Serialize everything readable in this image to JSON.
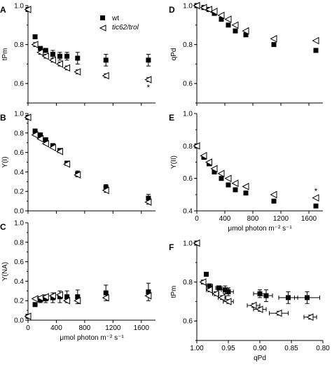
{
  "legend": {
    "entries": [
      {
        "label": "wt",
        "marker": "filled-square"
      },
      {
        "label": "tic62/trol",
        "marker": "open-triangle-left",
        "italic": true
      }
    ]
  },
  "chart_data": [
    {
      "panel": "A",
      "type": "scatter",
      "ylabel": "tPm",
      "xlabel": "",
      "xlim": [
        0,
        1800
      ],
      "ylim": [
        0.5,
        1.0
      ],
      "yticks": [
        "0.6",
        "0.8",
        "1.0"
      ],
      "xticks": [],
      "series": [
        {
          "name": "wt",
          "marker": "filled-square",
          "color": "#000000",
          "x": [
            0,
            100,
            175,
            250,
            350,
            450,
            550,
            700,
            1100,
            1700
          ],
          "y": [
            0.98,
            0.84,
            0.78,
            0.77,
            0.75,
            0.74,
            0.74,
            0.73,
            0.72,
            0.72
          ],
          "err": [
            0,
            0.01,
            0.01,
            0.01,
            0.02,
            0.02,
            0.02,
            0.03,
            0.03,
            0.03
          ]
        },
        {
          "name": "tic62/trol",
          "marker": "open-triangle-left",
          "color": "#000000",
          "x": [
            0,
            100,
            175,
            250,
            350,
            450,
            550,
            700,
            1100,
            1700
          ],
          "y": [
            0.98,
            0.8,
            0.76,
            0.74,
            0.72,
            0.7,
            0.68,
            0.66,
            0.64,
            0.62
          ],
          "err": [
            0,
            0.01,
            0.01,
            0.01,
            0.01,
            0.01,
            0.01,
            0.01,
            0.01,
            0.01
          ]
        }
      ],
      "annotations": [
        {
          "text": "*",
          "x": 1700,
          "y": 0.58
        }
      ]
    },
    {
      "panel": "B",
      "type": "scatter",
      "ylabel": "Y(I)",
      "xlabel": "",
      "xlim": [
        0,
        1800
      ],
      "ylim": [
        0,
        1.0
      ],
      "yticks": [
        "0.0",
        "0.2",
        "0.4",
        "0.6",
        "0.8",
        "1.0"
      ],
      "xticks": [],
      "series": [
        {
          "name": "wt",
          "marker": "filled-square",
          "color": "#000000",
          "x": [
            0,
            100,
            175,
            250,
            350,
            450,
            550,
            700,
            1100,
            1700
          ],
          "y": [
            0.96,
            0.82,
            0.78,
            0.73,
            0.67,
            0.62,
            0.49,
            0.38,
            0.24,
            0.13
          ],
          "err": [
            0,
            0.01,
            0.01,
            0.02,
            0.02,
            0.02,
            0.02,
            0.03,
            0.03,
            0.04
          ]
        },
        {
          "name": "tic62/trol",
          "marker": "open-triangle-left",
          "color": "#000000",
          "x": [
            0,
            100,
            175,
            250,
            350,
            450,
            550,
            700,
            1100,
            1700
          ],
          "y": [
            0.96,
            0.78,
            0.74,
            0.69,
            0.65,
            0.61,
            0.48,
            0.37,
            0.21,
            0.09
          ],
          "err": [
            0,
            0.01,
            0.01,
            0.01,
            0.01,
            0.01,
            0.01,
            0.01,
            0.02,
            0.02
          ]
        }
      ]
    },
    {
      "panel": "C",
      "type": "scatter",
      "ylabel": "Y(NA)",
      "xlabel": "μmol photon m⁻² s⁻¹",
      "xlim": [
        0,
        1800
      ],
      "ylim": [
        0,
        1.0
      ],
      "yticks": [
        "0.0",
        "0.2",
        "0.4",
        "0.6",
        "0.8",
        "1.0"
      ],
      "xticks": [
        "0",
        "400",
        "800",
        "1200",
        "1600"
      ],
      "series": [
        {
          "name": "wt",
          "marker": "filled-square",
          "color": "#000000",
          "x": [
            0,
            100,
            175,
            250,
            350,
            450,
            550,
            700,
            1100,
            1700
          ],
          "y": [
            0.04,
            0.16,
            0.21,
            0.22,
            0.23,
            0.24,
            0.24,
            0.24,
            0.28,
            0.29
          ],
          "err": [
            0,
            0.02,
            0.03,
            0.04,
            0.05,
            0.06,
            0.06,
            0.07,
            0.08,
            0.09
          ]
        },
        {
          "name": "tic62/trol",
          "marker": "open-triangle-left",
          "color": "#000000",
          "x": [
            0,
            100,
            175,
            250,
            350,
            450,
            550,
            700,
            1100,
            1700
          ],
          "y": [
            0.04,
            0.22,
            0.23,
            0.24,
            0.25,
            0.26,
            0.2,
            0.2,
            0.23,
            0.25
          ],
          "err": [
            0,
            0.01,
            0.01,
            0.01,
            0.01,
            0.01,
            0.01,
            0.01,
            0.01,
            0.01
          ]
        }
      ]
    },
    {
      "panel": "D",
      "type": "scatter",
      "ylabel": "qPd",
      "xlabel": "",
      "xlim": [
        0,
        1800
      ],
      "ylim": [
        0.5,
        1.0
      ],
      "yticks": [
        "0.6",
        "0.8",
        "1.0"
      ],
      "xticks": [],
      "series": [
        {
          "name": "wt",
          "marker": "filled-square",
          "color": "#000000",
          "x": [
            0,
            100,
            175,
            250,
            350,
            450,
            550,
            700,
            1100,
            1700
          ],
          "y": [
            1.0,
            0.99,
            0.98,
            0.96,
            0.93,
            0.9,
            0.87,
            0.85,
            0.8,
            0.77
          ],
          "err": [
            0,
            0,
            0,
            0,
            0,
            0,
            0,
            0,
            0.01,
            0.01
          ]
        },
        {
          "name": "tic62/trol",
          "marker": "open-triangle-left",
          "color": "#000000",
          "x": [
            0,
            100,
            175,
            250,
            350,
            450,
            550,
            700,
            1100,
            1700
          ],
          "y": [
            1.0,
            0.99,
            0.98,
            0.97,
            0.95,
            0.93,
            0.9,
            0.87,
            0.83,
            0.82
          ],
          "err": [
            0,
            0,
            0,
            0,
            0,
            0,
            0,
            0,
            0,
            0
          ]
        }
      ]
    },
    {
      "panel": "E",
      "type": "scatter",
      "ylabel": "Y(II)",
      "xlabel": "μmol photon m⁻² s⁻¹",
      "xlim": [
        0,
        1800
      ],
      "ylim": [
        0.4,
        1.0
      ],
      "yticks": [
        "0.4",
        "0.6",
        "0.8",
        "1.0"
      ],
      "xticks": [
        "0",
        "400",
        "800",
        "1200",
        "1600"
      ],
      "series": [
        {
          "name": "wt",
          "marker": "filled-square",
          "color": "#000000",
          "x": [
            0,
            100,
            175,
            250,
            350,
            450,
            550,
            700,
            1100,
            1700
          ],
          "y": [
            0.8,
            0.73,
            0.69,
            0.64,
            0.6,
            0.56,
            0.53,
            0.51,
            0.46,
            0.43
          ],
          "err": [
            0,
            0,
            0,
            0,
            0,
            0,
            0,
            0,
            0,
            0
          ]
        },
        {
          "name": "tic62/trol",
          "marker": "open-triangle-left",
          "color": "#000000",
          "x": [
            0,
            100,
            175,
            250,
            350,
            450,
            550,
            700,
            1100,
            1700
          ],
          "y": [
            0.8,
            0.74,
            0.7,
            0.66,
            0.63,
            0.6,
            0.57,
            0.55,
            0.5,
            0.48
          ],
          "err": [
            0,
            0,
            0,
            0,
            0,
            0,
            0,
            0,
            0,
            0
          ]
        }
      ],
      "annotations": [
        {
          "text": "*",
          "x": 1700,
          "y": 0.52
        }
      ]
    },
    {
      "panel": "F",
      "type": "scatter",
      "ylabel": "tPm",
      "xlabel": "qPd",
      "xlim": [
        1.0,
        0.8
      ],
      "ylim": [
        0.5,
        1.0
      ],
      "x_reversed": true,
      "yticks": [
        "0.6",
        "0.8",
        "1.0"
      ],
      "xticks": [
        "1.00",
        "0.95",
        "0.90",
        "0.85",
        "0.80"
      ],
      "series": [
        {
          "name": "wt",
          "marker": "filled-square",
          "color": "#000000",
          "x": [
            1.0,
            0.985,
            0.98,
            0.965,
            0.955,
            0.95,
            0.9,
            0.89,
            0.855,
            0.825
          ],
          "y": [
            1.0,
            0.84,
            0.78,
            0.77,
            0.76,
            0.75,
            0.74,
            0.73,
            0.72,
            0.72
          ],
          "err": [
            0,
            0.01,
            0.01,
            0.01,
            0.02,
            0.02,
            0.02,
            0.03,
            0.03,
            0.03
          ],
          "xerr": [
            0,
            0.003,
            0.005,
            0.005,
            0.006,
            0.008,
            0.01,
            0.01,
            0.015,
            0.02
          ]
        },
        {
          "name": "tic62/trol",
          "marker": "open-triangle-left",
          "color": "#000000",
          "x": [
            1.0,
            0.99,
            0.98,
            0.97,
            0.96,
            0.95,
            0.91,
            0.9,
            0.87,
            0.82
          ],
          "y": [
            1.0,
            0.8,
            0.76,
            0.74,
            0.72,
            0.7,
            0.68,
            0.66,
            0.64,
            0.62
          ],
          "err": [
            0,
            0.01,
            0.01,
            0.01,
            0.01,
            0.01,
            0.01,
            0.01,
            0.01,
            0.01
          ],
          "xerr": [
            0,
            0.003,
            0.005,
            0.005,
            0.006,
            0.008,
            0.01,
            0.01,
            0.015,
            0.01
          ]
        }
      ]
    }
  ]
}
